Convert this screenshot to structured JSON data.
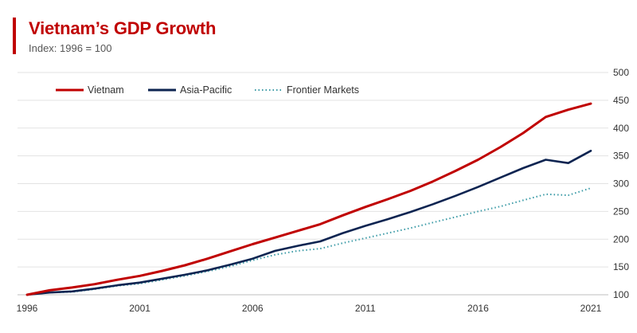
{
  "chart_data": {
    "type": "line",
    "title": "Vietnam’s GDP Growth",
    "subtitle": "Index: 1996 = 100",
    "xlabel": "",
    "ylabel": "",
    "x": [
      1996,
      1997,
      1998,
      1999,
      2000,
      2001,
      2002,
      2003,
      2004,
      2005,
      2006,
      2007,
      2008,
      2009,
      2010,
      2011,
      2012,
      2013,
      2014,
      2015,
      2016,
      2017,
      2018,
      2019,
      2020,
      2021
    ],
    "x_ticks": [
      "1996",
      "2001",
      "2006",
      "2011",
      "2016",
      "2021"
    ],
    "y_ticks": [
      "100",
      "150",
      "200",
      "250",
      "300",
      "350",
      "400",
      "450",
      "500"
    ],
    "xlim": [
      1996,
      2021
    ],
    "ylim": [
      100,
      500
    ],
    "grid": true,
    "legend_position": "top-left",
    "series": [
      {
        "name": "Vietnam",
        "color": "#c00000",
        "style": "solid",
        "values": [
          100,
          108,
          113,
          119,
          127,
          134,
          143,
          153,
          165,
          178,
          191,
          203,
          215,
          227,
          243,
          258,
          272,
          287,
          304,
          323,
          343,
          366,
          391,
          420,
          433,
          444
        ]
      },
      {
        "name": "Asia-Pacific",
        "color": "#0d2451",
        "style": "solid",
        "values": [
          100,
          104,
          106,
          111,
          117,
          122,
          129,
          136,
          144,
          154,
          165,
          179,
          188,
          196,
          211,
          224,
          236,
          249,
          263,
          278,
          294,
          311,
          328,
          343,
          337,
          359
        ]
      },
      {
        "name": "Frontier Markets",
        "color": "#3a9aa6",
        "style": "dotted",
        "values": [
          100,
          104,
          105,
          110,
          116,
          120,
          127,
          134,
          142,
          151,
          162,
          172,
          179,
          183,
          193,
          202,
          211,
          220,
          230,
          240,
          250,
          259,
          270,
          281,
          279,
          292
        ]
      }
    ]
  }
}
